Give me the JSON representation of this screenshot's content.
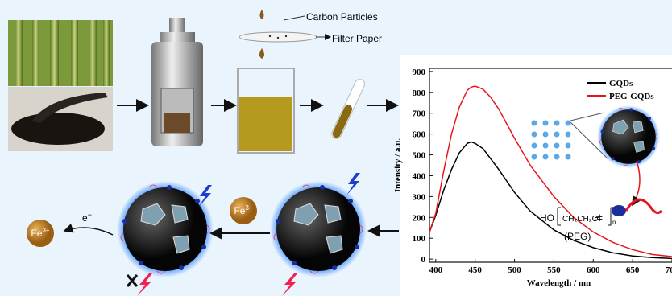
{
  "chart_data": {
    "type": "line",
    "xlabel": "Wavelength / nm",
    "ylabel": "Intensity / a.u.",
    "x": [
      392,
      400,
      410,
      420,
      430,
      440,
      445,
      450,
      460,
      470,
      480,
      490,
      500,
      520,
      550,
      575,
      600,
      625,
      650,
      675,
      700
    ],
    "series": [
      {
        "name": "GQDs",
        "color": "#000000",
        "values": [
          130,
          210,
          330,
          430,
          510,
          555,
          562,
          555,
          530,
          480,
          430,
          375,
          320,
          230,
          140,
          90,
          55,
          30,
          15,
          7,
          3
        ]
      },
      {
        "name": "PEG-GQDs",
        "color": "#e8141c",
        "values": [
          130,
          220,
          420,
          600,
          730,
          810,
          825,
          830,
          815,
          775,
          720,
          650,
          580,
          450,
          300,
          200,
          130,
          80,
          45,
          22,
          12
        ]
      }
    ],
    "xlim": [
      392,
      700
    ],
    "xticks": [
      400,
      450,
      500,
      550,
      600,
      650,
      700
    ],
    "ylim": [
      -15,
      915
    ],
    "yticks": [
      0,
      100,
      200,
      300,
      400,
      500,
      600,
      700,
      800,
      900
    ],
    "legend": "upper right"
  },
  "diagram": {
    "filter_labels": [
      "Carbon Particles",
      "Filter Paper"
    ],
    "ion_left": {
      "symbol": "Fe",
      "charge": "3+"
    },
    "ion_middle": {
      "symbol": "Fe",
      "charge": "3+"
    },
    "electron": {
      "symbol": "e",
      "charge": "−"
    },
    "peg": {
      "head": "HO",
      "unit": "CH₂CH₂O",
      "index": "n",
      "tail": "H",
      "equals": "=",
      "name": "(PEG)"
    }
  }
}
